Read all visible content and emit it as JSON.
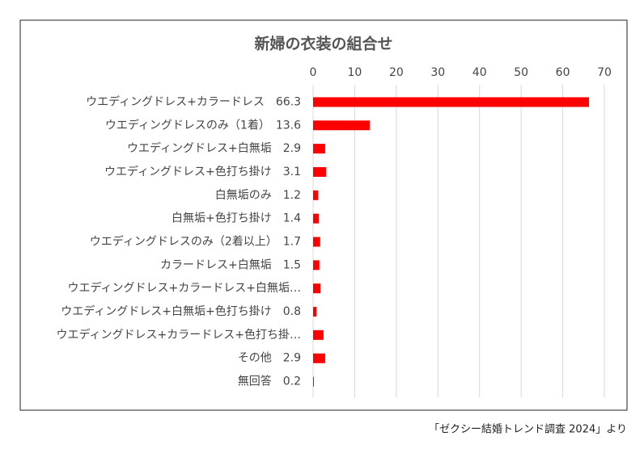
{
  "chart_data": {
    "type": "hbar",
    "title": "新婦の衣装の組合せ",
    "categories": [
      "ウエディングドレス+カラードレス　66.3",
      "ウエディングドレスのみ（1着）　13.6",
      "ウエディングドレス+白無垢　2.9",
      "ウエディングドレス+色打ち掛け　3.1",
      "白無垢のみ　1.2",
      "白無垢+色打ち掛け　1.4",
      "ウエディングドレスのみ（2着以上）　1.7",
      "カラードレス+白無垢　1.5",
      "ウエディングドレス+カラードレス+白無垢…",
      "ウエディングドレス+白無垢+色打ち掛け　0.8",
      "ウエディングドレス+カラードレス+色打ち掛…",
      "その他　2.9",
      "無回答　0.2"
    ],
    "values": [
      66.3,
      13.6,
      2.9,
      3.1,
      1.2,
      1.4,
      1.7,
      1.5,
      1.8,
      0.8,
      2.5,
      2.9,
      0.2
    ],
    "color": "#ff0000",
    "xlim": [
      0,
      70
    ],
    "xticks": [
      0,
      10,
      20,
      30,
      40,
      50,
      60,
      70
    ],
    "grid": true,
    "source": "「ゼクシー結婚トレンド調査 2024」より"
  }
}
